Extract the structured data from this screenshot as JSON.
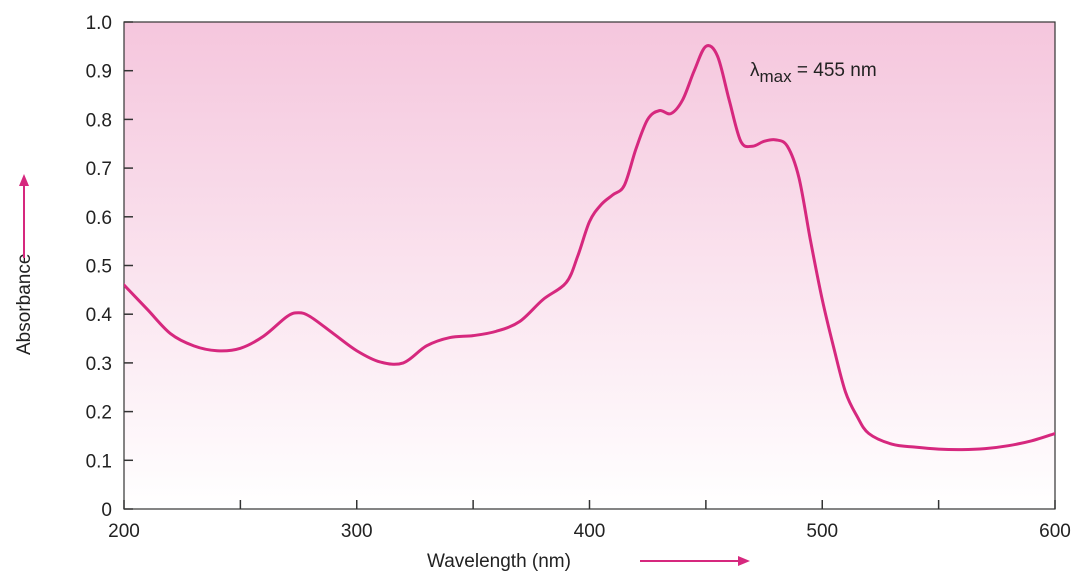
{
  "chart_data": {
    "type": "line",
    "title": "",
    "xlabel": "Wavelength (nm)",
    "ylabel": "Absorbance",
    "xlim": [
      200,
      600
    ],
    "ylim": [
      0,
      1.0
    ],
    "x_ticks": [
      200,
      250,
      300,
      350,
      400,
      450,
      500,
      550,
      600
    ],
    "x_tick_labels": [
      "200",
      "",
      "300",
      "",
      "400",
      "",
      "500",
      "",
      "600"
    ],
    "y_ticks": [
      0,
      0.1,
      0.2,
      0.3,
      0.4,
      0.5,
      0.6,
      0.7,
      0.8,
      0.9,
      1.0
    ],
    "y_tick_labels": [
      "0",
      "0.1",
      "0.2",
      "0.3",
      "0.4",
      "0.5",
      "0.6",
      "0.7",
      "0.8",
      "0.9",
      "1.0"
    ],
    "grid": false,
    "colors": {
      "line": "#d6287e",
      "background_top": "#f5c6dd",
      "background_bottom": "#ffffff",
      "axis": "#333333"
    },
    "annotation": {
      "lambda": "λ",
      "subscript": "max",
      "text": " = 455 nm"
    },
    "series": [
      {
        "x": [
          200,
          210,
          220,
          230,
          240,
          250,
          260,
          270,
          275,
          280,
          290,
          300,
          310,
          320,
          330,
          340,
          350,
          360,
          370,
          380,
          390,
          395,
          400,
          405,
          410,
          415,
          420,
          425,
          430,
          435,
          440,
          445,
          450,
          455,
          460,
          465,
          470,
          475,
          480,
          485,
          490,
          495,
          500,
          505,
          510,
          515,
          520,
          530,
          540,
          550,
          560,
          570,
          580,
          590,
          600
        ],
        "y": [
          0.46,
          0.41,
          0.36,
          0.335,
          0.325,
          0.33,
          0.355,
          0.395,
          0.403,
          0.395,
          0.36,
          0.325,
          0.302,
          0.3,
          0.335,
          0.352,
          0.356,
          0.365,
          0.385,
          0.43,
          0.465,
          0.52,
          0.59,
          0.625,
          0.645,
          0.665,
          0.74,
          0.8,
          0.818,
          0.812,
          0.84,
          0.9,
          0.95,
          0.93,
          0.84,
          0.755,
          0.745,
          0.755,
          0.758,
          0.745,
          0.68,
          0.55,
          0.43,
          0.33,
          0.24,
          0.19,
          0.155,
          0.133,
          0.127,
          0.123,
          0.122,
          0.124,
          0.13,
          0.14,
          0.155
        ]
      }
    ]
  }
}
